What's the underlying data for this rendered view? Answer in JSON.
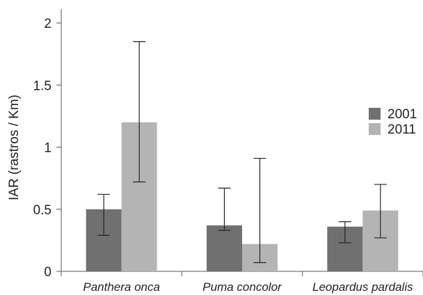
{
  "chart_data": {
    "type": "bar",
    "title": "",
    "xlabel": "",
    "ylabel": "IAR (rastros / Km)",
    "ylim": [
      0,
      2.0
    ],
    "yticks": [
      "0",
      "0.5",
      "1",
      "1.5",
      "2"
    ],
    "categories": [
      "Panthera onca",
      "Puma concolor",
      "Leopardus pardalis"
    ],
    "series": [
      {
        "name": "2001",
        "color": "#707070",
        "values": [
          0.5,
          0.37,
          0.36
        ],
        "err_low": [
          0.29,
          0.33,
          0.23
        ],
        "err_high": [
          0.62,
          0.67,
          0.4
        ]
      },
      {
        "name": "2011",
        "color": "#b4b4b4",
        "values": [
          1.2,
          0.22,
          0.49
        ],
        "err_low": [
          0.72,
          0.07,
          0.27
        ],
        "err_high": [
          1.85,
          0.91,
          0.7
        ]
      }
    ],
    "grid": false,
    "legend_position": "right"
  }
}
